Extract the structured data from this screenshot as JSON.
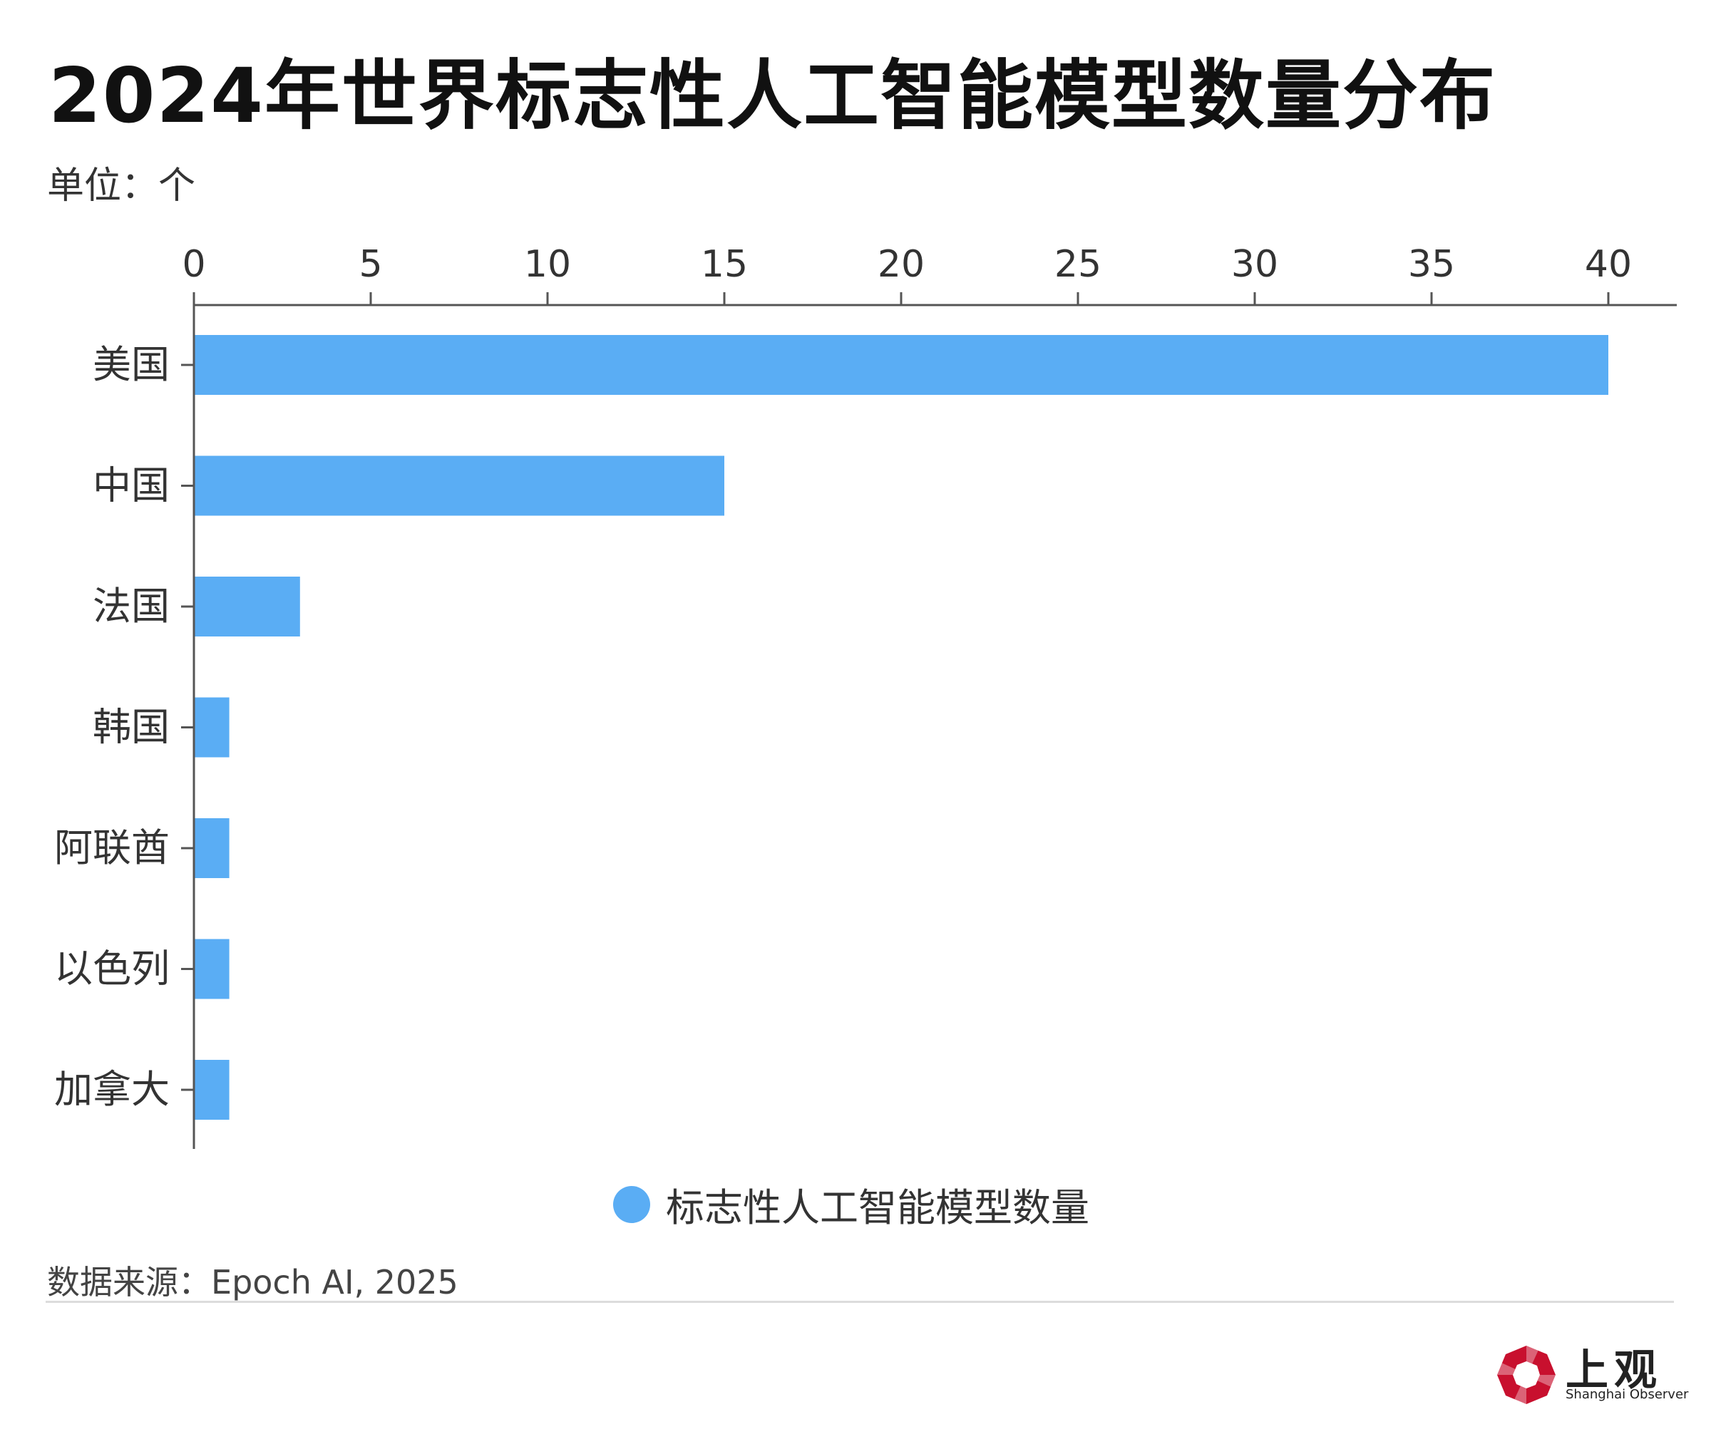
{
  "title": "2024年世界标志性人工智能模型数量分布",
  "unit_label": "单位：个",
  "source": "数据来源：Epoch AI, 2025",
  "logo": {
    "cn": "上观",
    "en": "Shanghai Observer"
  },
  "colors": {
    "bar": "#5aadf4",
    "axis": "#555555",
    "logo_red": "#c8102e"
  },
  "chart_data": {
    "type": "bar",
    "orientation": "horizontal",
    "categories": [
      "美国",
      "中国",
      "法国",
      "韩国",
      "阿联酋",
      "以色列",
      "加拿大"
    ],
    "series": [
      {
        "name": "标志性人工智能模型数量",
        "values": [
          40,
          15,
          3,
          1,
          1,
          1,
          1
        ]
      }
    ],
    "xlim": [
      0,
      42
    ],
    "xticks": [
      "0",
      "5",
      "10",
      "15",
      "20",
      "25",
      "30",
      "35",
      "40"
    ],
    "x_axis_position": "top",
    "grid": false,
    "legend": "bottom-center"
  }
}
